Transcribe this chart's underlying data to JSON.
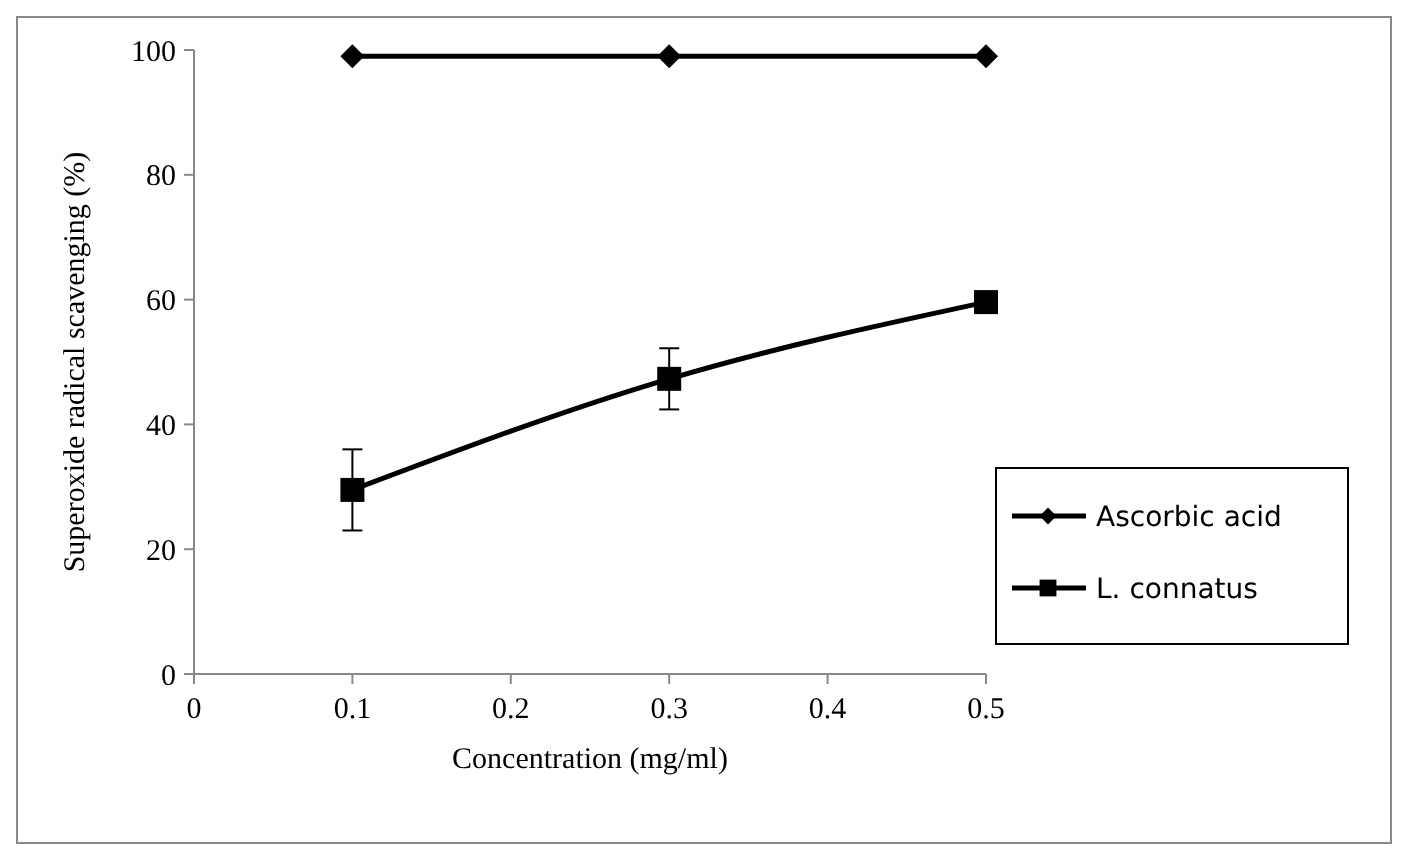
{
  "chart_data": {
    "type": "line",
    "xlabel": "Concentration (mg/ml)",
    "ylabel": "Superoxide radical scavenging (%)",
    "x": [
      0.1,
      0.3,
      0.5
    ],
    "series": [
      {
        "name": "Ascorbic acid",
        "color": "#000000",
        "marker": "diamond",
        "values": [
          99,
          99,
          99
        ]
      },
      {
        "name": "L. connatus",
        "color": "#000000",
        "marker": "square",
        "values": [
          29.5,
          47.3,
          59.6
        ],
        "errors": [
          6.5,
          4.9,
          null
        ]
      }
    ],
    "xlim": [
      0,
      0.5
    ],
    "xticks": [
      0,
      0.1,
      0.2,
      0.3,
      0.4,
      0.5
    ],
    "ylim": [
      0,
      100
    ],
    "yticks": [
      0,
      20,
      40,
      60,
      80,
      100
    ],
    "grid": false,
    "legend": "right"
  }
}
